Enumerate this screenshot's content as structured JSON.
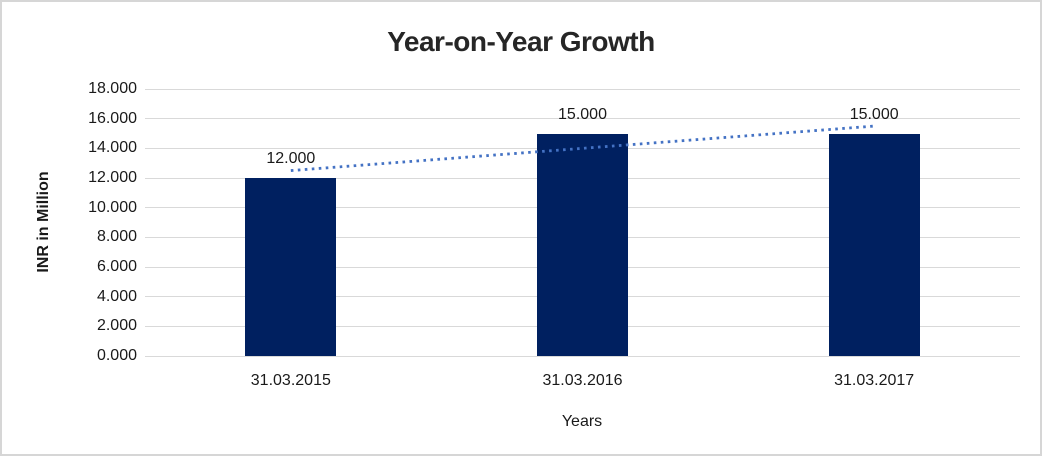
{
  "chart_data": {
    "type": "bar",
    "title": "Year-on-Year Growth",
    "categories": [
      "31.03.2015",
      "31.03.2016",
      "31.03.2017"
    ],
    "values": [
      12,
      15,
      15
    ],
    "data_labels": [
      "12.000",
      "15.000",
      "15.000"
    ],
    "xlabel": "Years",
    "ylabel": "INR in Million",
    "ylim": [
      0,
      18
    ],
    "ytick_step": 2,
    "ytick_labels": [
      "0.000",
      "2.000",
      "4.000",
      "6.000",
      "8.000",
      "10.000",
      "12.000",
      "14.000",
      "16.000",
      "18.000"
    ],
    "grid": true,
    "legend": "none",
    "colors": {
      "bar": "#002060",
      "trendline": "#4472C4",
      "gridline": "#d9d9d9",
      "text": "#1a1a1a",
      "title_text": "#262626",
      "frame_border": "#d6d6d6"
    },
    "trendline": {
      "type": "linear",
      "style": "dotted",
      "start_value": 12.5,
      "end_value": 15.5
    }
  }
}
